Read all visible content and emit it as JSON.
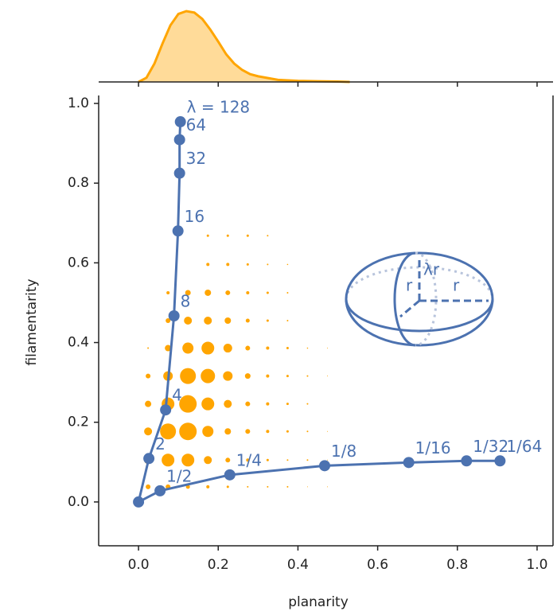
{
  "chart_data": {
    "type": "scatter",
    "x_label": "planarity",
    "y_label": "filamentarity",
    "xlim": [
      -0.1,
      1.04
    ],
    "ylim": [
      -0.11,
      1.02
    ],
    "xticks": [
      {
        "value": 0,
        "label": "0.0"
      },
      {
        "value": 0.2,
        "label": "0.2"
      },
      {
        "value": 0.4,
        "label": "0.4"
      },
      {
        "value": 0.6,
        "label": "0.6"
      },
      {
        "value": 0.8,
        "label": "0.8"
      },
      {
        "value": 1,
        "label": "1.0"
      }
    ],
    "yticks": [
      {
        "value": 0,
        "label": "0.0"
      },
      {
        "value": 0.2,
        "label": "0.2"
      },
      {
        "value": 0.4,
        "label": "0.4"
      },
      {
        "value": 0.6,
        "label": "0.6"
      },
      {
        "value": 0.8,
        "label": "0.8"
      },
      {
        "value": 1,
        "label": "1.0"
      }
    ],
    "bubbles": {
      "color": "#ffa500",
      "x": [
        0.174,
        0.224,
        0.274,
        0.324,
        0.174,
        0.224,
        0.274,
        0.324,
        0.374,
        0.074,
        0.124,
        0.174,
        0.224,
        0.274,
        0.324,
        0.374,
        0.074,
        0.124,
        0.174,
        0.224,
        0.274,
        0.324,
        0.374,
        0.024,
        0.074,
        0.124,
        0.174,
        0.224,
        0.274,
        0.324,
        0.374,
        0.424,
        0.474,
        0.024,
        0.074,
        0.124,
        0.174,
        0.224,
        0.274,
        0.324,
        0.374,
        0.424,
        0.474,
        0.024,
        0.074,
        0.124,
        0.174,
        0.224,
        0.274,
        0.324,
        0.374,
        0.424,
        0.024,
        0.074,
        0.124,
        0.174,
        0.224,
        0.274,
        0.324,
        0.374,
        0.424,
        0.474,
        0.024,
        0.074,
        0.124,
        0.174,
        0.224,
        0.274,
        0.324,
        0.374,
        0.424,
        0.474,
        0.024,
        0.074,
        0.124,
        0.174,
        0.224,
        0.274,
        0.324,
        0.374,
        0.424,
        0.474
      ],
      "y": [
        0.668,
        0.668,
        0.668,
        0.668,
        0.596,
        0.596,
        0.596,
        0.596,
        0.596,
        0.525,
        0.525,
        0.525,
        0.525,
        0.525,
        0.525,
        0.525,
        0.455,
        0.455,
        0.455,
        0.455,
        0.455,
        0.455,
        0.455,
        0.386,
        0.386,
        0.386,
        0.386,
        0.386,
        0.386,
        0.386,
        0.386,
        0.386,
        0.386,
        0.316,
        0.316,
        0.316,
        0.316,
        0.316,
        0.316,
        0.316,
        0.316,
        0.316,
        0.316,
        0.246,
        0.246,
        0.246,
        0.246,
        0.246,
        0.246,
        0.246,
        0.246,
        0.246,
        0.177,
        0.177,
        0.177,
        0.177,
        0.177,
        0.177,
        0.177,
        0.177,
        0.177,
        0.177,
        0.105,
        0.105,
        0.105,
        0.105,
        0.105,
        0.105,
        0.105,
        0.105,
        0.105,
        0.105,
        0.038,
        0.038,
        0.038,
        0.038,
        0.038,
        0.038,
        0.038,
        0.038,
        0.038,
        0.038
      ],
      "sizes": [
        1.5,
        1.5,
        1.5,
        1,
        2,
        2,
        1.5,
        1,
        0.8,
        2,
        3.5,
        4,
        3,
        2,
        1.5,
        1,
        3,
        5,
        5,
        4,
        2.5,
        1.5,
        1,
        1,
        4,
        7,
        8,
        5.5,
        3,
        2,
        1.5,
        0.8,
        0.5,
        3,
        6,
        10,
        9,
        6,
        3.5,
        2,
        1.5,
        1,
        0.5,
        4,
        8,
        11,
        8,
        5,
        3,
        2,
        1.5,
        1,
        5,
        10,
        11,
        7,
        4,
        3,
        2,
        1.5,
        1,
        0.5,
        5,
        8,
        8,
        5,
        3,
        2,
        1.5,
        1,
        1,
        0.5,
        3,
        3,
        2.5,
        2,
        1.5,
        1,
        1,
        1,
        0.5,
        0.5
      ]
    },
    "series": [
      {
        "color": "#4c72b0",
        "x": [
          0.105,
          0.103,
          0.103,
          0.099,
          0.089,
          0.068,
          0.026,
          0,
          0.054,
          0.229,
          0.467,
          0.678,
          0.823,
          0.907
        ],
        "y": [
          0.954,
          0.909,
          0.825,
          0.68,
          0.467,
          0.231,
          0.109,
          0,
          0.028,
          0.068,
          0.091,
          0.099,
          0.103,
          0.103
        ],
        "labels": [
          "λ = 128",
          "64",
          "32",
          "16",
          "8",
          "4",
          "2",
          null,
          "1/2",
          "1/4",
          "1/8",
          "1/16",
          "1/32",
          "1/64"
        ]
      }
    ],
    "marginal": {
      "color": "#ffa500",
      "x": [
        0,
        0.02,
        0.04,
        0.06,
        0.08,
        0.1,
        0.12,
        0.14,
        0.16,
        0.18,
        0.2,
        0.22,
        0.24,
        0.26,
        0.28,
        0.3,
        0.35,
        0.4,
        0.45,
        0.5,
        0.53
      ],
      "density": [
        0,
        0.06,
        0.26,
        0.54,
        0.8,
        0.96,
        1,
        0.98,
        0.89,
        0.74,
        0.57,
        0.39,
        0.26,
        0.17,
        0.11,
        0.08,
        0.03,
        0.015,
        0.01,
        0.005,
        0
      ]
    },
    "annotations": [
      "λr",
      "r",
      "r"
    ]
  }
}
